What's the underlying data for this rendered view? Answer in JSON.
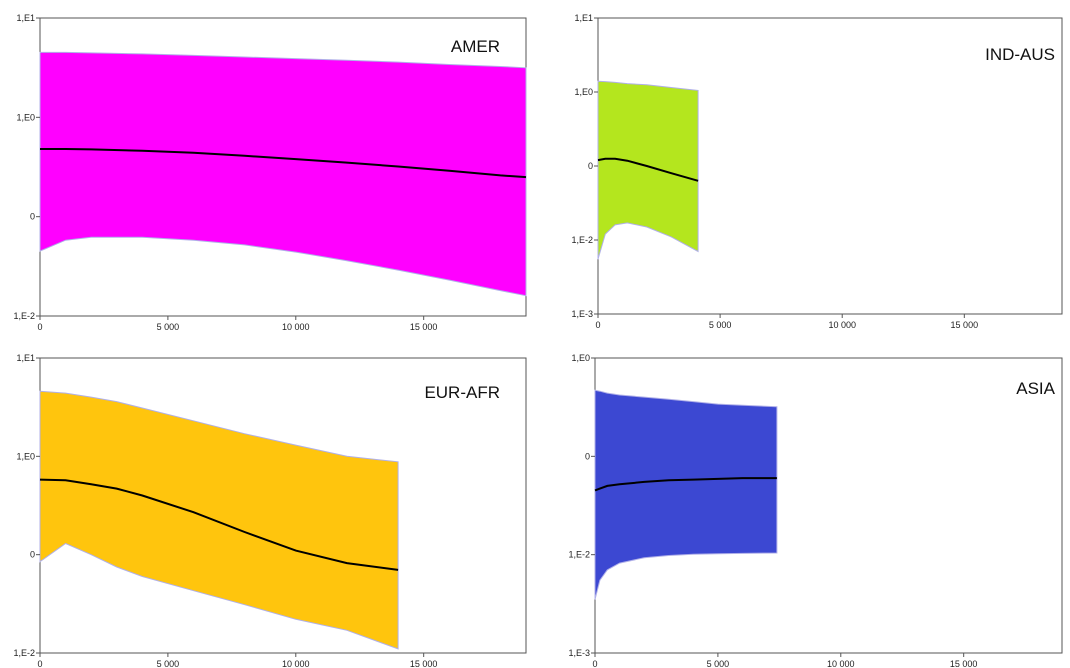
{
  "chart_data": [
    {
      "type": "area",
      "region": "AMER",
      "y_scale": "log",
      "y_ticks": [
        {
          "value": 0.01,
          "label": "1,E-2"
        },
        {
          "value": 0.1,
          "label": "0"
        },
        {
          "value": 1,
          "label": "1,E0"
        },
        {
          "value": 10,
          "label": "1,E1"
        }
      ],
      "ylim": [
        0.01,
        10
      ],
      "xlim": [
        0,
        19000
      ],
      "x_ticks": [
        {
          "value": 0,
          "label": "0"
        },
        {
          "value": 5000,
          "label": "5 000"
        },
        {
          "value": 10000,
          "label": "10 000"
        },
        {
          "value": 15000,
          "label": "15 000"
        }
      ],
      "band_color": "#ff00ff",
      "x": [
        0,
        1000,
        2000,
        4000,
        6000,
        8000,
        10000,
        12000,
        14000,
        16000,
        18000,
        19000
      ],
      "median": [
        0.48,
        0.48,
        0.475,
        0.46,
        0.44,
        0.41,
        0.38,
        0.35,
        0.32,
        0.29,
        0.26,
        0.25
      ],
      "upper": [
        4.5,
        4.5,
        4.45,
        4.35,
        4.2,
        4.05,
        3.9,
        3.75,
        3.6,
        3.4,
        3.25,
        3.15
      ],
      "lower": [
        0.045,
        0.058,
        0.062,
        0.062,
        0.058,
        0.052,
        0.044,
        0.036,
        0.029,
        0.023,
        0.018,
        0.016
      ]
    },
    {
      "type": "area",
      "region": "IND-AUS",
      "y_scale": "log",
      "y_ticks": [
        {
          "value": 0.001,
          "label": "1,E-3"
        },
        {
          "value": 0.01,
          "label": "1,E-2"
        },
        {
          "value": 0.1,
          "label": "0"
        },
        {
          "value": 1,
          "label": "1,E0"
        },
        {
          "value": 10,
          "label": "1,E1"
        }
      ],
      "ylim": [
        0.001,
        10
      ],
      "xlim": [
        0,
        19000
      ],
      "x_ticks": [
        {
          "value": 0,
          "label": "0"
        },
        {
          "value": 5000,
          "label": "5 000"
        },
        {
          "value": 10000,
          "label": "10 000"
        },
        {
          "value": 15000,
          "label": "15 000"
        }
      ],
      "band_color": "#b4e61e",
      "x": [
        0,
        300,
        700,
        1200,
        2000,
        3000,
        4100
      ],
      "median": [
        0.12,
        0.125,
        0.125,
        0.118,
        0.1,
        0.08,
        0.063
      ],
      "upper": [
        1.4,
        1.38,
        1.35,
        1.3,
        1.25,
        1.15,
        1.05
      ],
      "lower": [
        0.0055,
        0.012,
        0.016,
        0.017,
        0.015,
        0.011,
        0.007
      ]
    },
    {
      "type": "area",
      "region": "EUR-AFR",
      "y_scale": "log",
      "y_ticks": [
        {
          "value": 0.01,
          "label": "1,E-2"
        },
        {
          "value": 0.1,
          "label": "0"
        },
        {
          "value": 1,
          "label": "1,E0"
        },
        {
          "value": 10,
          "label": "1,E1"
        }
      ],
      "ylim": [
        0.01,
        10
      ],
      "xlim": [
        0,
        19000
      ],
      "x_ticks": [
        {
          "value": 0,
          "label": "0"
        },
        {
          "value": 5000,
          "label": "5 000"
        },
        {
          "value": 10000,
          "label": "10 000"
        },
        {
          "value": 15000,
          "label": "15 000"
        }
      ],
      "band_color": "#ffc50d",
      "x": [
        0,
        1000,
        2000,
        3000,
        4000,
        6000,
        8000,
        10000,
        12000,
        14000
      ],
      "median": [
        0.58,
        0.57,
        0.52,
        0.47,
        0.4,
        0.27,
        0.17,
        0.11,
        0.082,
        0.07
      ],
      "upper": [
        4.6,
        4.4,
        4.0,
        3.6,
        3.1,
        2.3,
        1.7,
        1.3,
        1.0,
        0.88
      ],
      "lower": [
        0.085,
        0.13,
        0.1,
        0.075,
        0.06,
        0.043,
        0.031,
        0.022,
        0.017,
        0.011
      ]
    },
    {
      "type": "area",
      "region": "ASIA",
      "y_scale": "log",
      "y_ticks": [
        {
          "value": 0.001,
          "label": "1,E-3"
        },
        {
          "value": 0.01,
          "label": "1,E-2"
        },
        {
          "value": 0.1,
          "label": "0"
        },
        {
          "value": 1,
          "label": "1,E0"
        }
      ],
      "ylim": [
        0.001,
        1
      ],
      "xlim": [
        0,
        19000
      ],
      "x_ticks": [
        {
          "value": 0,
          "label": "0"
        },
        {
          "value": 5000,
          "label": "5 000"
        },
        {
          "value": 10000,
          "label": "10 000"
        },
        {
          "value": 15000,
          "label": "15 000"
        }
      ],
      "band_color": "#3c48d2",
      "x": [
        0,
        200,
        500,
        1000,
        2000,
        3000,
        4000,
        5000,
        6000,
        7400
      ],
      "median": [
        0.045,
        0.047,
        0.05,
        0.052,
        0.055,
        0.057,
        0.058,
        0.059,
        0.06,
        0.06
      ],
      "upper": [
        0.47,
        0.46,
        0.44,
        0.42,
        0.4,
        0.38,
        0.36,
        0.34,
        0.33,
        0.32
      ],
      "lower": [
        0.0035,
        0.0055,
        0.007,
        0.0082,
        0.0093,
        0.0098,
        0.0101,
        0.0102,
        0.0103,
        0.0104
      ]
    }
  ]
}
